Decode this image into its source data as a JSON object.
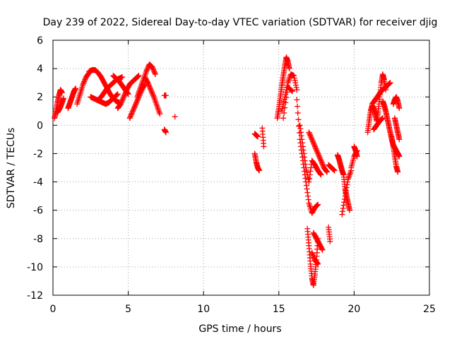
{
  "chart_data": {
    "type": "scatter",
    "title": "Day 239 of 2022, Sidereal Day-to-day VTEC variation (SDTVAR) for receiver djig",
    "xlabel": "GPS time / hours",
    "ylabel": "SDTVAR / TECUs",
    "xlim": [
      0,
      25
    ],
    "ylim": [
      -12,
      6
    ],
    "xticks": [
      0,
      5,
      10,
      15,
      20,
      25
    ],
    "yticks": [
      -12,
      -10,
      -8,
      -6,
      -4,
      -2,
      0,
      2,
      4,
      6
    ],
    "grid": true,
    "marker": "plus",
    "series": [
      {
        "name": "SDTVAR",
        "color": "#ff0000",
        "tracks": [
          {
            "x": [
              0.1,
              0.2,
              0.3,
              0.4,
              0.5,
              0.6
            ],
            "y": [
              0.5,
              1.0,
              1.6,
              2.1,
              2.5,
              2.3
            ]
          },
          {
            "x": [
              0.3,
              0.4,
              0.5,
              0.6,
              0.7
            ],
            "y": [
              0.9,
              1.1,
              1.3,
              1.6,
              1.9
            ]
          },
          {
            "x": [
              1.0,
              1.1,
              1.2,
              1.3,
              1.4,
              1.5
            ],
            "y": [
              1.2,
              1.5,
              1.8,
              2.1,
              2.4,
              2.6
            ]
          },
          {
            "x": [
              1.6,
              1.8,
              2.0,
              2.2,
              2.4
            ],
            "y": [
              1.5,
              2.2,
              2.9,
              3.4,
              3.7
            ]
          },
          {
            "x": [
              2.4,
              2.6,
              2.8,
              3.0,
              3.2,
              3.4,
              3.6,
              3.8,
              4.0,
              4.2,
              4.4
            ],
            "y": [
              3.8,
              3.9,
              3.9,
              3.7,
              3.4,
              3.0,
              2.6,
              2.2,
              1.9,
              1.7,
              1.6
            ]
          },
          {
            "x": [
              2.5,
              2.7,
              2.9,
              3.1,
              3.3,
              3.5,
              3.7,
              3.9,
              4.1,
              4.3
            ],
            "y": [
              2.0,
              1.9,
              1.8,
              1.7,
              1.6,
              1.5,
              1.6,
              1.8,
              2.0,
              2.2
            ]
          },
          {
            "x": [
              3.0,
              3.2,
              3.4,
              3.6,
              3.8,
              4.0,
              4.2,
              4.4,
              4.6
            ],
            "y": [
              1.8,
              2.0,
              2.3,
              2.6,
              2.8,
              3.0,
              3.2,
              3.3,
              3.4
            ]
          },
          {
            "x": [
              4.0,
              4.2,
              4.4,
              4.6,
              4.8,
              5.0
            ],
            "y": [
              3.5,
              3.3,
              3.1,
              2.8,
              2.5,
              2.2
            ]
          },
          {
            "x": [
              4.3,
              4.5,
              4.7,
              4.9,
              5.1,
              5.3,
              5.5,
              5.7
            ],
            "y": [
              1.2,
              1.5,
              2.0,
              2.5,
              2.9,
              3.1,
              3.3,
              3.5
            ]
          },
          {
            "x": [
              5.1,
              5.3,
              5.5,
              5.7,
              5.9,
              6.1
            ],
            "y": [
              0.5,
              1.0,
              1.5,
              2.0,
              2.5,
              2.9
            ]
          },
          {
            "x": [
              5.6,
              5.8,
              6.0,
              6.2,
              6.4,
              6.6,
              6.8
            ],
            "y": [
              2.0,
              2.6,
              3.2,
              3.8,
              4.3,
              4.1,
              3.6
            ]
          },
          {
            "x": [
              6.1,
              6.3,
              6.5,
              6.7,
              6.9,
              7.1
            ],
            "y": [
              3.4,
              3.0,
              2.5,
              2.0,
              1.4,
              0.8
            ]
          },
          {
            "x": [
              7.4,
              7.5
            ],
            "y": [
              2.1,
              2.1
            ]
          },
          {
            "x": [
              7.4,
              7.5
            ],
            "y": [
              -0.3,
              -0.5
            ]
          },
          {
            "x": [
              8.1
            ],
            "y": [
              0.6
            ]
          },
          {
            "x": [
              13.4,
              13.5,
              13.6
            ],
            "y": [
              -0.6,
              -0.7,
              -0.8
            ]
          },
          {
            "x": [
              13.4,
              13.5,
              13.6,
              13.7
            ],
            "y": [
              -2.0,
              -2.6,
              -3.0,
              -3.2
            ]
          },
          {
            "x": [
              13.9,
              14.0
            ],
            "y": [
              -0.2,
              -1.5
            ]
          },
          {
            "x": [
              14.9,
              15.0,
              15.1,
              15.2,
              15.3,
              15.4,
              15.5,
              15.6,
              15.7
            ],
            "y": [
              0.5,
              1.2,
              2.0,
              2.8,
              3.5,
              4.2,
              4.8,
              4.5,
              4.0
            ]
          },
          {
            "x": [
              15.2,
              15.4,
              15.6,
              15.8,
              16.0,
              16.2
            ],
            "y": [
              1.0,
              2.0,
              3.0,
              3.6,
              3.5,
              2.5
            ]
          },
          {
            "x": [
              15.3,
              15.6,
              15.9
            ],
            "y": [
              0.5,
              2.7,
              2.4
            ]
          },
          {
            "x": [
              16.2,
              16.4,
              16.6,
              16.8,
              17.0,
              17.2,
              17.4,
              17.6
            ],
            "y": [
              1.8,
              -1.0,
              -2.5,
              -4.0,
              -5.5,
              -6.2,
              -5.8,
              -5.6
            ]
          },
          {
            "x": [
              16.4,
              16.6,
              16.8,
              17.0,
              17.2,
              17.4,
              17.6,
              17.8
            ],
            "y": [
              0.0,
              -1.5,
              -3.0,
              -4.0,
              -2.5,
              -2.8,
              -3.2,
              -3.5
            ]
          },
          {
            "x": [
              17.0,
              17.2,
              17.4,
              17.6,
              17.8,
              18.0,
              18.2
            ],
            "y": [
              -0.5,
              -1.0,
              -1.5,
              -2.0,
              -2.5,
              -3.0,
              -3.3
            ]
          },
          {
            "x": [
              16.9,
              17.0,
              17.1,
              17.2,
              17.3,
              17.4,
              17.5,
              17.6
            ],
            "y": [
              -7.3,
              -8.5,
              -9.8,
              -10.8,
              -11.3,
              -10.5,
              -9.5,
              -8.0
            ]
          },
          {
            "x": [
              17.3,
              17.5,
              17.7,
              17.9
            ],
            "y": [
              -7.6,
              -8.0,
              -8.4,
              -8.8
            ]
          },
          {
            "x": [
              17.2,
              17.4,
              17.6
            ],
            "y": [
              -9.0,
              -9.5,
              -9.8
            ]
          },
          {
            "x": [
              18.3,
              18.4
            ],
            "y": [
              -7.2,
              -8.2
            ]
          },
          {
            "x": [
              18.3,
              18.5,
              18.7
            ],
            "y": [
              -2.8,
              -3.0,
              -3.2
            ]
          },
          {
            "x": [
              18.9,
              19.0,
              19.1,
              19.2,
              19.3,
              19.4,
              19.5,
              19.6,
              19.7
            ],
            "y": [
              -2.1,
              -2.4,
              -2.8,
              -3.2,
              -3.5,
              -4.5,
              -5.0,
              -5.5,
              -6.0
            ]
          },
          {
            "x": [
              19.2,
              19.4,
              19.6,
              19.8
            ],
            "y": [
              -6.3,
              -5.0,
              -3.8,
              -3.2
            ]
          },
          {
            "x": [
              19.8,
              20.0,
              20.2
            ],
            "y": [
              -3.0,
              -2.2,
              -1.8
            ]
          },
          {
            "x": [
              20.0,
              20.1,
              20.2
            ],
            "y": [
              -1.5,
              -1.8,
              -2.2
            ]
          },
          {
            "x": [
              20.9,
              21.0,
              21.1,
              21.2,
              21.3,
              21.4,
              21.5,
              21.6,
              21.7,
              21.8,
              21.9,
              22.0,
              22.1
            ],
            "y": [
              -0.5,
              0.3,
              1.0,
              1.4,
              1.2,
              0.8,
              0.3,
              1.0,
              2.0,
              3.0,
              3.6,
              3.2,
              2.5
            ]
          },
          {
            "x": [
              21.2,
              21.4,
              21.6,
              21.8,
              22.0,
              22.2,
              22.4
            ],
            "y": [
              1.5,
              1.8,
              2.1,
              2.4,
              2.6,
              2.8,
              3.0
            ]
          },
          {
            "x": [
              21.3,
              21.5,
              21.7,
              21.9
            ],
            "y": [
              -0.3,
              0.0,
              0.3,
              0.5
            ]
          },
          {
            "x": [
              21.9,
              22.0,
              22.1,
              22.2,
              22.3,
              22.4,
              22.5,
              22.6,
              22.7,
              22.8,
              22.9,
              23.0
            ],
            "y": [
              1.7,
              1.4,
              1.0,
              0.5,
              0.0,
              -0.5,
              -1.0,
              -1.4,
              -1.6,
              -1.8,
              -2.0,
              -2.2
            ]
          },
          {
            "x": [
              22.5,
              22.6,
              22.7,
              22.8,
              22.9
            ],
            "y": [
              -0.8,
              -1.5,
              -2.2,
              -2.9,
              -3.3
            ]
          },
          {
            "x": [
              22.6,
              22.7,
              22.8,
              22.9,
              23.0
            ],
            "y": [
              1.5,
              1.8,
              2.0,
              1.7,
              1.2
            ]
          },
          {
            "x": [
              22.7,
              22.8,
              22.9,
              23.0
            ],
            "y": [
              0.5,
              0.0,
              -0.5,
              -1.0
            ]
          }
        ]
      }
    ]
  }
}
